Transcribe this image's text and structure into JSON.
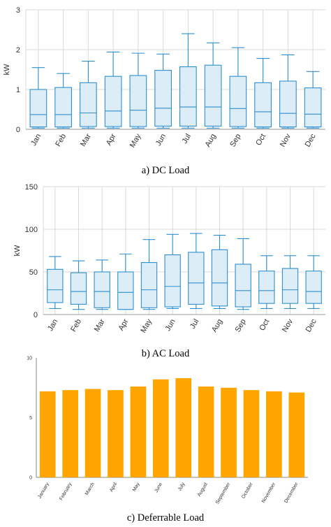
{
  "chart_data": [
    {
      "type": "box",
      "caption": "a) DC Load",
      "ylabel": "kW",
      "ylim": [
        0,
        3
      ],
      "yticks": [
        "0",
        "1",
        "2",
        "3"
      ],
      "grid": true,
      "categories": [
        "Jan",
        "Feb",
        "Mar",
        "Apr",
        "May",
        "Jun",
        "Jul",
        "Aug",
        "Sep",
        "Oct",
        "Nov",
        "Dec"
      ],
      "boxes": [
        {
          "min": 0.03,
          "q1": 0.06,
          "median": 0.37,
          "q3": 1.0,
          "max": 1.55
        },
        {
          "min": 0.03,
          "q1": 0.06,
          "median": 0.37,
          "q3": 1.05,
          "max": 1.4
        },
        {
          "min": 0.03,
          "q1": 0.07,
          "median": 0.41,
          "q3": 1.17,
          "max": 1.71
        },
        {
          "min": 0.03,
          "q1": 0.07,
          "median": 0.46,
          "q3": 1.33,
          "max": 1.94
        },
        {
          "min": 0.03,
          "q1": 0.07,
          "median": 0.48,
          "q3": 1.35,
          "max": 1.91
        },
        {
          "min": 0.03,
          "q1": 0.08,
          "median": 0.53,
          "q3": 1.48,
          "max": 1.89
        },
        {
          "min": 0.03,
          "q1": 0.08,
          "median": 0.56,
          "q3": 1.57,
          "max": 2.4
        },
        {
          "min": 0.03,
          "q1": 0.08,
          "median": 0.56,
          "q3": 1.61,
          "max": 2.17
        },
        {
          "min": 0.03,
          "q1": 0.07,
          "median": 0.52,
          "q3": 1.33,
          "max": 2.05
        },
        {
          "min": 0.03,
          "q1": 0.06,
          "median": 0.44,
          "q3": 1.17,
          "max": 1.78
        },
        {
          "min": 0.03,
          "q1": 0.06,
          "median": 0.4,
          "q3": 1.21,
          "max": 1.87
        },
        {
          "min": 0.03,
          "q1": 0.06,
          "median": 0.38,
          "q3": 1.04,
          "max": 1.45
        }
      ]
    },
    {
      "type": "box",
      "caption": "b) AC Load",
      "ylabel": "kW",
      "ylim": [
        0,
        150
      ],
      "yticks": [
        "0",
        "50",
        "100",
        "150"
      ],
      "grid": true,
      "categories": [
        "Jan",
        "Feb",
        "Mar",
        "Apr",
        "May",
        "Jun",
        "Jul",
        "Aug",
        "Sep",
        "Oct",
        "Nov",
        "Dec"
      ],
      "boxes": [
        {
          "min": 7,
          "q1": 14,
          "median": 29,
          "q3": 53,
          "max": 68
        },
        {
          "min": 6,
          "q1": 12,
          "median": 27,
          "q3": 49,
          "max": 63
        },
        {
          "min": 6,
          "q1": 8,
          "median": 27,
          "q3": 50,
          "max": 64
        },
        {
          "min": 6,
          "q1": 6,
          "median": 26,
          "q3": 50,
          "max": 71
        },
        {
          "min": 6,
          "q1": 8,
          "median": 29,
          "q3": 61,
          "max": 88
        },
        {
          "min": 7,
          "q1": 9,
          "median": 33,
          "q3": 70,
          "max": 94
        },
        {
          "min": 7,
          "q1": 12,
          "median": 37,
          "q3": 73,
          "max": 95
        },
        {
          "min": 7,
          "q1": 10,
          "median": 37,
          "q3": 76,
          "max": 93
        },
        {
          "min": 6,
          "q1": 9,
          "median": 28,
          "q3": 59,
          "max": 89
        },
        {
          "min": 7,
          "q1": 13,
          "median": 28,
          "q3": 51,
          "max": 69
        },
        {
          "min": 7,
          "q1": 13,
          "median": 29,
          "q3": 54,
          "max": 69
        },
        {
          "min": 7,
          "q1": 13,
          "median": 27,
          "q3": 51,
          "max": 69
        }
      ]
    },
    {
      "type": "bar",
      "caption": "c) Deferrable Load",
      "ylabel": "",
      "ylim": [
        0,
        10
      ],
      "yticks": [
        "0",
        "5",
        "10"
      ],
      "grid": false,
      "categories": [
        "January",
        "February",
        "March",
        "April",
        "May",
        "June",
        "July",
        "August",
        "September",
        "October",
        "November",
        "December"
      ],
      "values": [
        7.2,
        7.3,
        7.4,
        7.3,
        7.6,
        8.2,
        8.3,
        7.6,
        7.5,
        7.3,
        7.2,
        7.1
      ]
    }
  ],
  "colors": {
    "box_fill": "#dcedf8",
    "box_stroke": "#2e8fcf",
    "bar_fill": "#ffa500",
    "grid": "#d9d9d9",
    "axis": "#9a9a9a"
  }
}
